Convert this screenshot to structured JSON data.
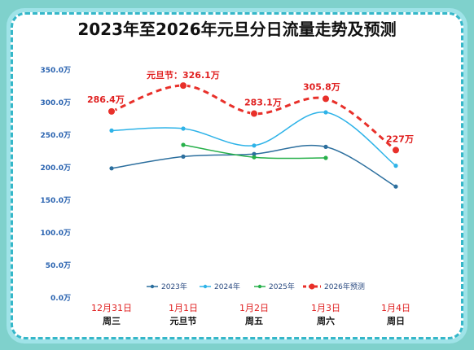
{
  "title": "2023年至2026年元旦分日流量走势及预测",
  "colors": {
    "s2023": "#2c6f9e",
    "s2024": "#2eb3e8",
    "s2025": "#27b04a",
    "s2026": "#e8302a",
    "tick": "#2a63b0"
  },
  "chart_data": {
    "type": "line",
    "x": [
      "12月31日",
      "1月1日",
      "1月2日",
      "1月3日",
      "1月4日"
    ],
    "x_sub": [
      "周三",
      "元旦节",
      "周五",
      "周六",
      "周日"
    ],
    "ylim": [
      0,
      350
    ],
    "yticks": [
      "0.0万",
      "50.0万",
      "100.0万",
      "150.0万",
      "200.0万",
      "250.0万",
      "300.0万",
      "350.0万"
    ],
    "series": [
      {
        "name": "2023年",
        "values": [
          199,
          217,
          221,
          232,
          171
        ]
      },
      {
        "name": "2024年",
        "values": [
          257,
          260,
          234,
          285,
          203
        ]
      },
      {
        "name": "2025年",
        "values": [
          null,
          235,
          216,
          215,
          null
        ]
      },
      {
        "name": "2026年预测",
        "values": [
          286.4,
          326.1,
          283.1,
          305.8,
          227
        ]
      }
    ],
    "annotations": [
      "286.4万",
      "元旦节：326.1万",
      "283.1万",
      "305.8万",
      "227万"
    ],
    "grid": false,
    "legend": "bottom"
  }
}
